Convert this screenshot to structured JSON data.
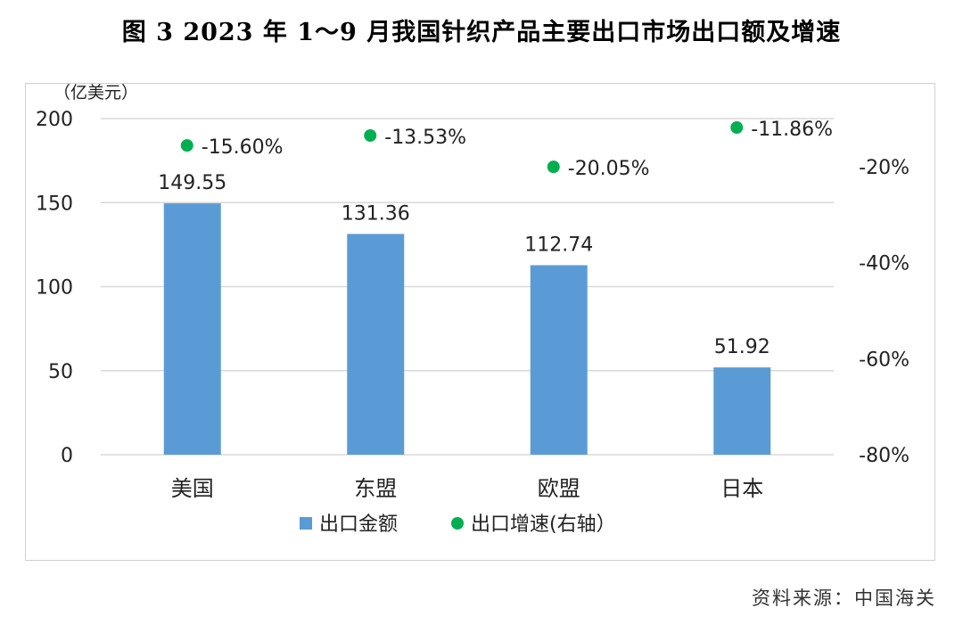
{
  "title": "图 3   2023 年 1～9 月我国针织产品主要出口市场出口额及增速",
  "source": "资料来源：中国海关",
  "chart_data": {
    "type": "bar",
    "categories": [
      "美国",
      "东盟",
      "欧盟",
      "日本"
    ],
    "y_unit_label": "（亿美元）",
    "ylim": [
      0,
      200
    ],
    "y_ticks": [
      0,
      50,
      100,
      150,
      200
    ],
    "y2lim": [
      -80,
      -10
    ],
    "y2_ticks": [
      -80,
      -60,
      -40,
      -20
    ],
    "y2_tick_labels": [
      "-80%",
      "-60%",
      "-40%",
      "-20%"
    ],
    "grid": true,
    "legend_position": "bottom",
    "series": [
      {
        "name": "出口金额",
        "type": "bar",
        "axis": "left",
        "color": "#5B9BD5",
        "values": [
          149.55,
          131.36,
          112.74,
          51.92
        ],
        "labels": [
          "149.55",
          "131.36",
          "112.74",
          "51.92"
        ]
      },
      {
        "name": "出口增速(右轴）",
        "type": "scatter",
        "axis": "right",
        "color": "#00B050",
        "values": [
          -15.6,
          -13.53,
          -20.05,
          -11.86
        ],
        "labels": [
          "-15.60%",
          "-13.53%",
          "-20.05%",
          "-11.86%"
        ]
      }
    ]
  }
}
